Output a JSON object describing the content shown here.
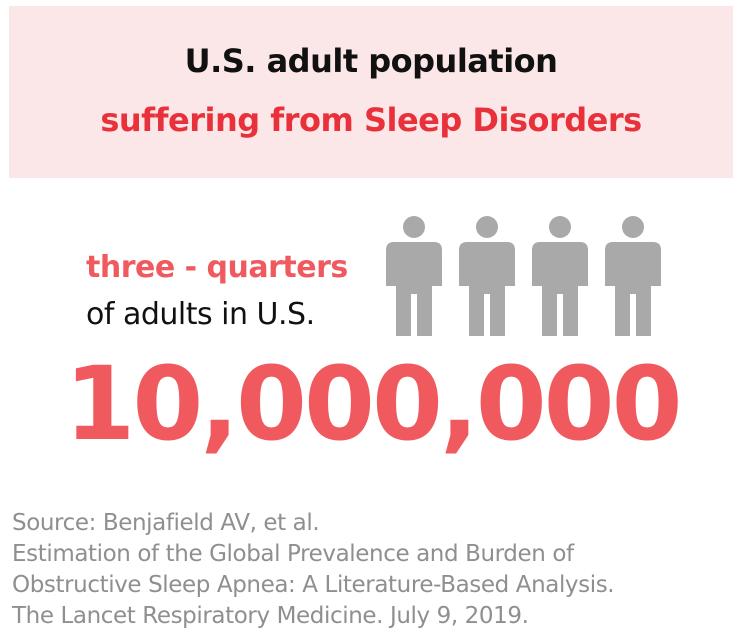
{
  "header": {
    "title_line1": "U.S. adult population",
    "title_line2": "suffering from Sleep Disorders"
  },
  "stat": {
    "fraction": "three - quarters",
    "population": "of adults in U.S.",
    "count": "10,000,000"
  },
  "icons": [
    "person-icon",
    "person-icon",
    "person-icon",
    "person-icon"
  ],
  "source": {
    "line1": "Source: Benjafield AV, et al.",
    "line2": "Estimation of the Global Prevalence and Burden of",
    "line3": "Obstructive Sleep Apnea: A Literature-Based Analysis.",
    "line4": "The Lancet Respiratory Medicine. July 9, 2019."
  },
  "colors": {
    "header_bg": "#fbe7e7",
    "accent_red": "#e8313a",
    "number_red": "#f05a5f",
    "icon_gray": "#a9a9a9",
    "source_gray": "#8f8f8f"
  }
}
